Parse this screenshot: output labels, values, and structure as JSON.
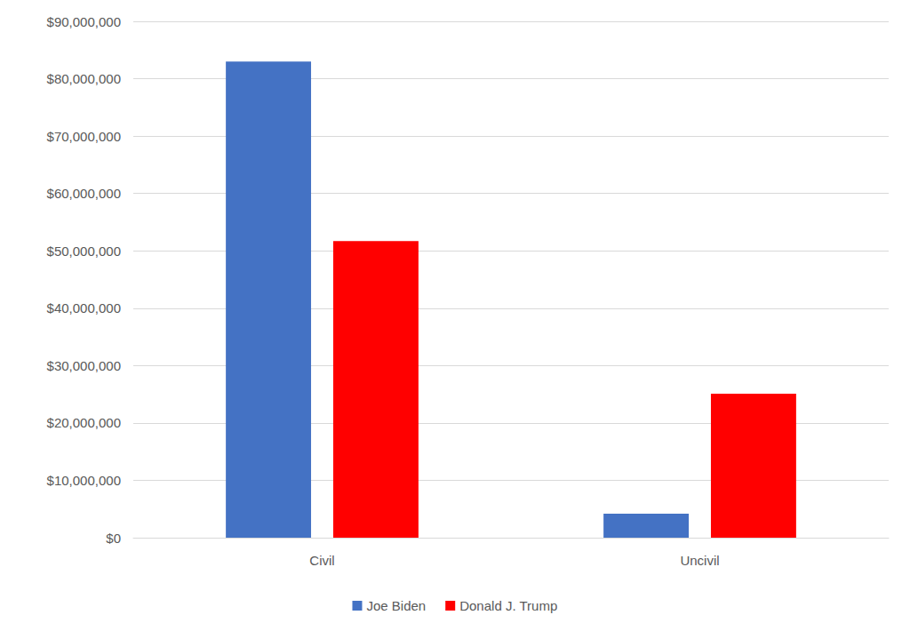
{
  "chart_data": {
    "type": "bar",
    "categories": [
      "Civil",
      "Uncivil"
    ],
    "series": [
      {
        "name": "Joe Biden",
        "color": "#4472c4",
        "values": [
          83000000,
          4200000
        ]
      },
      {
        "name": "Donald J. Trump",
        "color": "#ff0000",
        "values": [
          51700000,
          25100000
        ]
      }
    ],
    "ylim": [
      0,
      90000000
    ],
    "yticks": [
      {
        "value": 0,
        "label": "$0"
      },
      {
        "value": 10000000,
        "label": "$10,000,000"
      },
      {
        "value": 20000000,
        "label": "$20,000,000"
      },
      {
        "value": 30000000,
        "label": "$30,000,000"
      },
      {
        "value": 40000000,
        "label": "$40,000,000"
      },
      {
        "value": 50000000,
        "label": "$50,000,000"
      },
      {
        "value": 60000000,
        "label": "$60,000,000"
      },
      {
        "value": 70000000,
        "label": "$70,000,000"
      },
      {
        "value": 80000000,
        "label": "$80,000,000"
      },
      {
        "value": 90000000,
        "label": "$90,000,000"
      }
    ],
    "grid": true,
    "legend": "bottom"
  }
}
